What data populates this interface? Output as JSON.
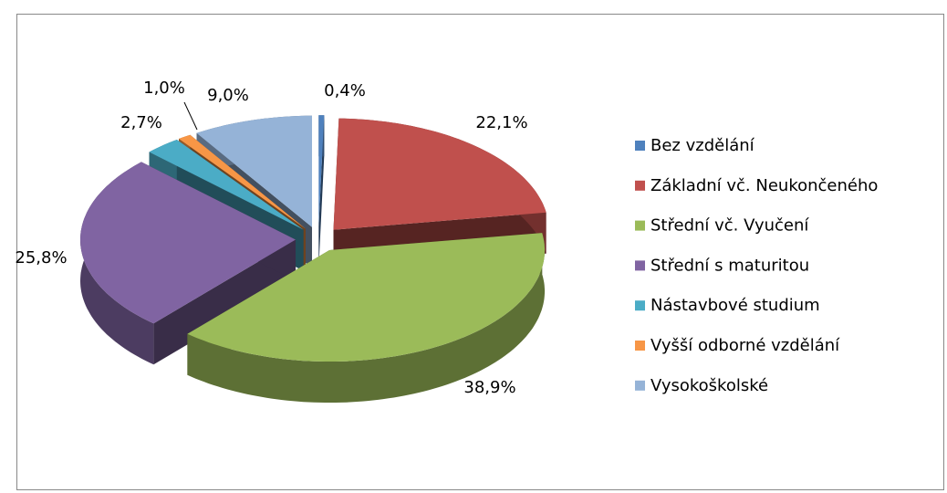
{
  "chart_data": {
    "type": "pie3d",
    "categories": [
      "Bez vzdělání",
      "Základní vč. Neukončeného",
      "Střední vč. Vyučení",
      "Střední s maturitou",
      "Nástavbové studium",
      "Vyšší odborné vzdělání",
      "Vysokoškolské"
    ],
    "values": [
      0.4,
      22.1,
      38.9,
      25.8,
      2.7,
      1.0,
      9.0
    ],
    "value_labels": [
      "0,4%",
      "22,1%",
      "38,9%",
      "25,8%",
      "2,7%",
      "1,0%",
      "9,0%"
    ],
    "colors": [
      "#4f81bd",
      "#c0504d",
      "#9bbb59",
      "#8064a2",
      "#4bacc6",
      "#f79646",
      "#95b3d7"
    ],
    "legend": "right"
  }
}
